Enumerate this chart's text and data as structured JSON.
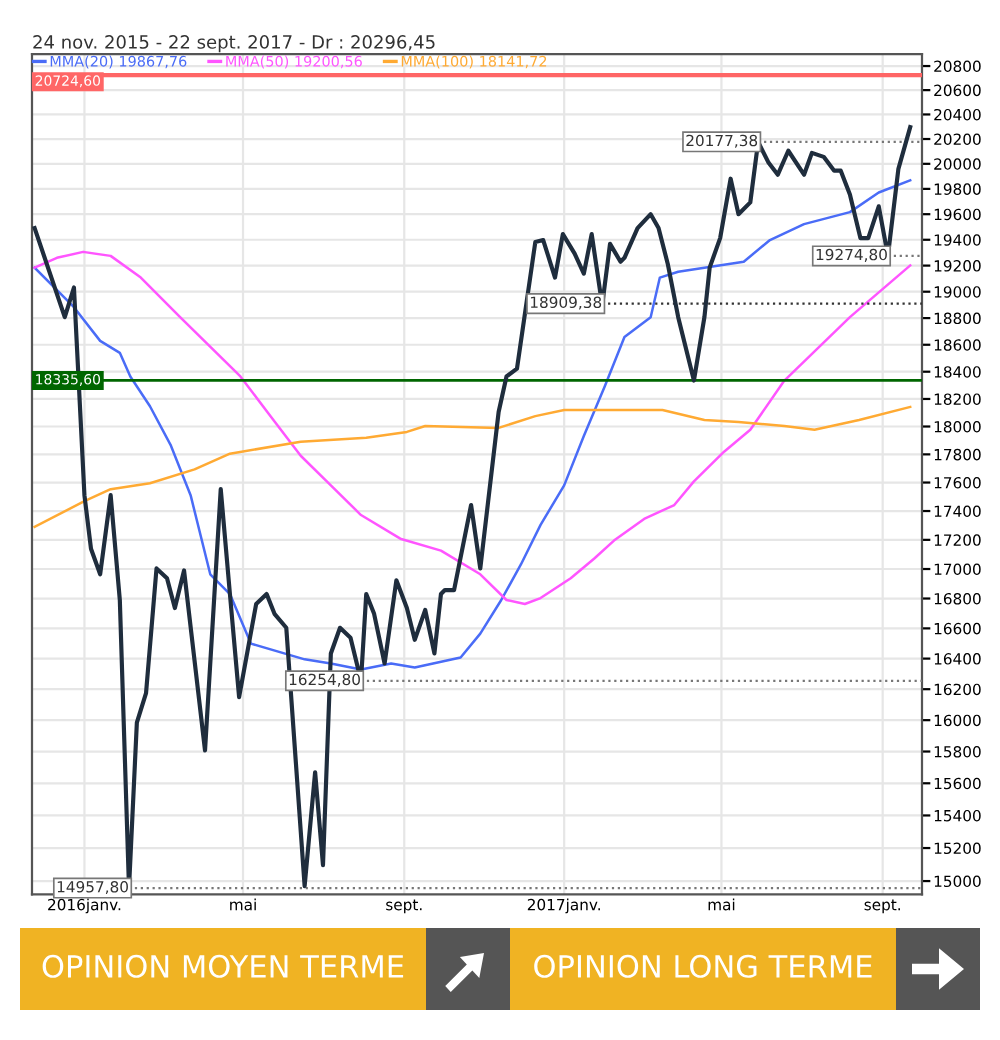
{
  "chart_data": {
    "type": "line",
    "title": "24 nov. 2015 - 22 sept. 2017 - Dr : 20296,45",
    "log": true,
    "grid": true,
    "legend": "top left",
    "line_style": "solid",
    "xlim": [
      "2015-11-22",
      "2017-10-01"
    ],
    "xticks": [
      {
        "value": "2016-01-01",
        "label": "2016janv."
      },
      {
        "value": "2016-05-01",
        "label": "mai"
      },
      {
        "value": "2016-09-01",
        "label": "sept."
      },
      {
        "value": "2017-01-01",
        "label": "2017janv."
      },
      {
        "value": "2017-05-01",
        "label": "mai"
      },
      {
        "value": "2017-09-01",
        "label": "sept."
      }
    ],
    "ylim": [
      14920,
      20900
    ],
    "yticks": [
      15000,
      15200,
      15400,
      15600,
      15800,
      16000,
      16200,
      16400,
      16600,
      16800,
      17000,
      17200,
      17400,
      17600,
      17800,
      18000,
      18200,
      18400,
      18600,
      18800,
      19000,
      19200,
      19400,
      19600,
      19800,
      20000,
      20200,
      20400,
      20600,
      20800
    ],
    "series": [
      {
        "color": "#1f2d3d",
        "x": [
          "2015-11-24",
          "2015-12-17",
          "2015-12-24",
          "2016-01-01",
          "2016-01-06",
          "2016-01-13",
          "2016-01-21",
          "2016-01-28",
          "2016-02-04",
          "2016-02-10",
          "2016-02-17",
          "2016-02-25",
          "2016-03-04",
          "2016-03-10",
          "2016-03-17",
          "2016-04-02",
          "2016-04-14",
          "2016-04-21",
          "2016-04-28",
          "2016-05-11",
          "2016-05-19",
          "2016-05-25",
          "2016-06-03",
          "2016-06-17",
          "2016-06-25",
          "2016-07-01",
          "2016-07-07",
          "2016-07-14",
          "2016-07-22",
          "2016-07-30",
          "2016-08-03",
          "2016-08-09",
          "2016-08-17",
          "2016-08-26",
          "2016-09-03",
          "2016-09-09",
          "2016-09-17",
          "2016-09-24",
          "2016-09-29",
          "2016-10-02",
          "2016-10-09",
          "2016-10-22",
          "2016-10-29",
          "2016-11-12",
          "2016-11-18",
          "2016-11-26",
          "2016-12-10",
          "2016-12-16",
          "2016-12-25",
          "2016-12-31",
          "2017-01-09",
          "2017-01-16",
          "2017-01-22",
          "2017-01-30",
          "2017-02-05",
          "2017-02-13",
          "2017-02-16",
          "2017-02-26",
          "2017-03-08",
          "2017-03-14",
          "2017-03-21",
          "2017-03-29",
          "2017-04-10",
          "2017-04-18",
          "2017-04-22",
          "2017-04-30",
          "2017-05-08",
          "2017-05-14",
          "2017-05-23",
          "2017-05-29",
          "2017-06-06",
          "2017-06-13",
          "2017-06-21",
          "2017-07-03",
          "2017-07-09",
          "2017-07-18",
          "2017-07-26",
          "2017-07-31",
          "2017-08-07",
          "2017-08-15",
          "2017-08-21",
          "2017-08-29",
          "2017-09-05",
          "2017-09-13",
          "2017-09-22"
        ],
        "values": [
          19491,
          18807,
          19032,
          17511,
          17139,
          16964,
          17511,
          16790,
          14958,
          15984,
          16174,
          17004,
          16937,
          16736,
          16990,
          15807,
          17553,
          16830,
          16149,
          16763,
          16830,
          16697,
          16604,
          14970,
          15669,
          15096,
          16434,
          16604,
          16538,
          16255,
          16830,
          16697,
          16368,
          16923,
          16736,
          16524,
          16723,
          16434,
          16830,
          16857,
          16857,
          17442,
          17004,
          18105,
          18365,
          18423,
          19383,
          19398,
          19108,
          19444,
          19292,
          19139,
          19444,
          18897,
          19368,
          19230,
          19260,
          19491,
          19600,
          19491,
          19215,
          18807,
          18335,
          18807,
          19184,
          19413,
          19881,
          19600,
          19693,
          20177,
          20008,
          19913,
          20105,
          19913,
          20088,
          20056,
          19945,
          19945,
          19755,
          19413,
          19413,
          19662,
          19275,
          19960,
          20296
        ]
      },
      {
        "name": "MMA(20) 19867,76",
        "color": "#4a6cf7",
        "x": [
          "2015-11-24",
          "2015-12-24",
          "2016-01-13",
          "2016-01-28",
          "2016-02-05",
          "2016-02-20",
          "2016-03-07",
          "2016-03-22",
          "2016-04-06",
          "2016-04-21",
          "2016-05-07",
          "2016-06-17",
          "2016-07-07",
          "2016-07-30",
          "2016-08-22",
          "2016-09-09",
          "2016-10-14",
          "2016-10-29",
          "2016-11-14",
          "2016-11-29",
          "2016-12-14",
          "2017-01-01",
          "2017-01-16",
          "2017-02-01",
          "2017-02-16",
          "2017-03-08",
          "2017-03-15",
          "2017-03-29",
          "2017-04-18",
          "2017-05-18",
          "2017-06-07",
          "2017-07-03",
          "2017-08-07",
          "2017-08-29",
          "2017-09-22"
        ],
        "values": [
          19184,
          18882,
          18629,
          18540,
          18365,
          18147,
          17862,
          17511,
          16964,
          16830,
          16499,
          16395,
          16368,
          16329,
          16368,
          16342,
          16407,
          16565,
          16790,
          17031,
          17304,
          17580,
          17932,
          18293,
          18658,
          18807,
          19108,
          19153,
          19184,
          19230,
          19398,
          19522,
          19616,
          19771,
          19868
        ]
      },
      {
        "name": "MMA(50) 19200,56",
        "color": "#ff55ff",
        "x": [
          "2015-11-24",
          "2015-12-11",
          "2015-12-31",
          "2016-01-21",
          "2016-02-13",
          "2016-03-14",
          "2016-04-29",
          "2016-05-22",
          "2016-06-14",
          "2016-07-07",
          "2016-07-30",
          "2016-08-29",
          "2016-09-29",
          "2016-10-29",
          "2016-11-18",
          "2016-12-02",
          "2016-12-14",
          "2017-01-06",
          "2017-01-24",
          "2017-02-08",
          "2017-03-03",
          "2017-03-26",
          "2017-04-10",
          "2017-05-03",
          "2017-05-23",
          "2017-06-18",
          "2017-08-07",
          "2017-09-22"
        ],
        "values": [
          19184,
          19260,
          19306,
          19275,
          19108,
          18807,
          18365,
          18075,
          17790,
          17580,
          17372,
          17208,
          17126,
          16964,
          16790,
          16763,
          16803,
          16937,
          17072,
          17195,
          17345,
          17442,
          17608,
          17819,
          17976,
          18335,
          18807,
          19201
        ]
      },
      {
        "name": "MMA(100) 18141,72",
        "color": "#ffaa33",
        "x": [
          "2015-11-24",
          "2016-01-01",
          "2016-01-21",
          "2016-02-20",
          "2016-03-25",
          "2016-04-21",
          "2016-06-14",
          "2016-08-03",
          "2016-09-03",
          "2016-09-17",
          "2016-11-12",
          "2016-12-10",
          "2017-01-01",
          "2017-03-17",
          "2017-04-18",
          "2017-05-14",
          "2017-06-18",
          "2017-07-11",
          "2017-08-14",
          "2017-09-22"
        ],
        "values": [
          17290,
          17469,
          17553,
          17595,
          17693,
          17805,
          17890,
          17919,
          17961,
          18004,
          17990,
          18075,
          18119,
          18119,
          18047,
          18033,
          18004,
          17976,
          18047,
          18142
        ]
      }
    ],
    "ref_lines": [
      {
        "axis": "y",
        "value": 20724.6,
        "label": "20724,60",
        "color": "#ff6666",
        "line_style": "solid"
      },
      {
        "axis": "y",
        "value": 20177.38,
        "label": "20177,38",
        "color": "#777777",
        "line_style": "dotted"
      },
      {
        "axis": "y",
        "value": 19274.8,
        "label": "19274,80",
        "color": "#777777",
        "line_style": "dotted"
      },
      {
        "axis": "y",
        "value": 18909.38,
        "label": "18909,38",
        "color": "#333333",
        "line_style": "dotted"
      },
      {
        "axis": "y",
        "value": 18335.6,
        "label": "18335,60",
        "color": "#006600",
        "line_style": "solid"
      },
      {
        "axis": "y",
        "value": 16254.8,
        "label": "16254,80",
        "color": "#777777",
        "line_style": "dotted"
      },
      {
        "axis": "y",
        "value": 14957.8,
        "label": "14957,80",
        "color": "#777777",
        "line_style": "dotted"
      }
    ],
    "annotations": [
      "OPINION MOYEN TERME",
      "OPINION LONG TERME"
    ]
  }
}
